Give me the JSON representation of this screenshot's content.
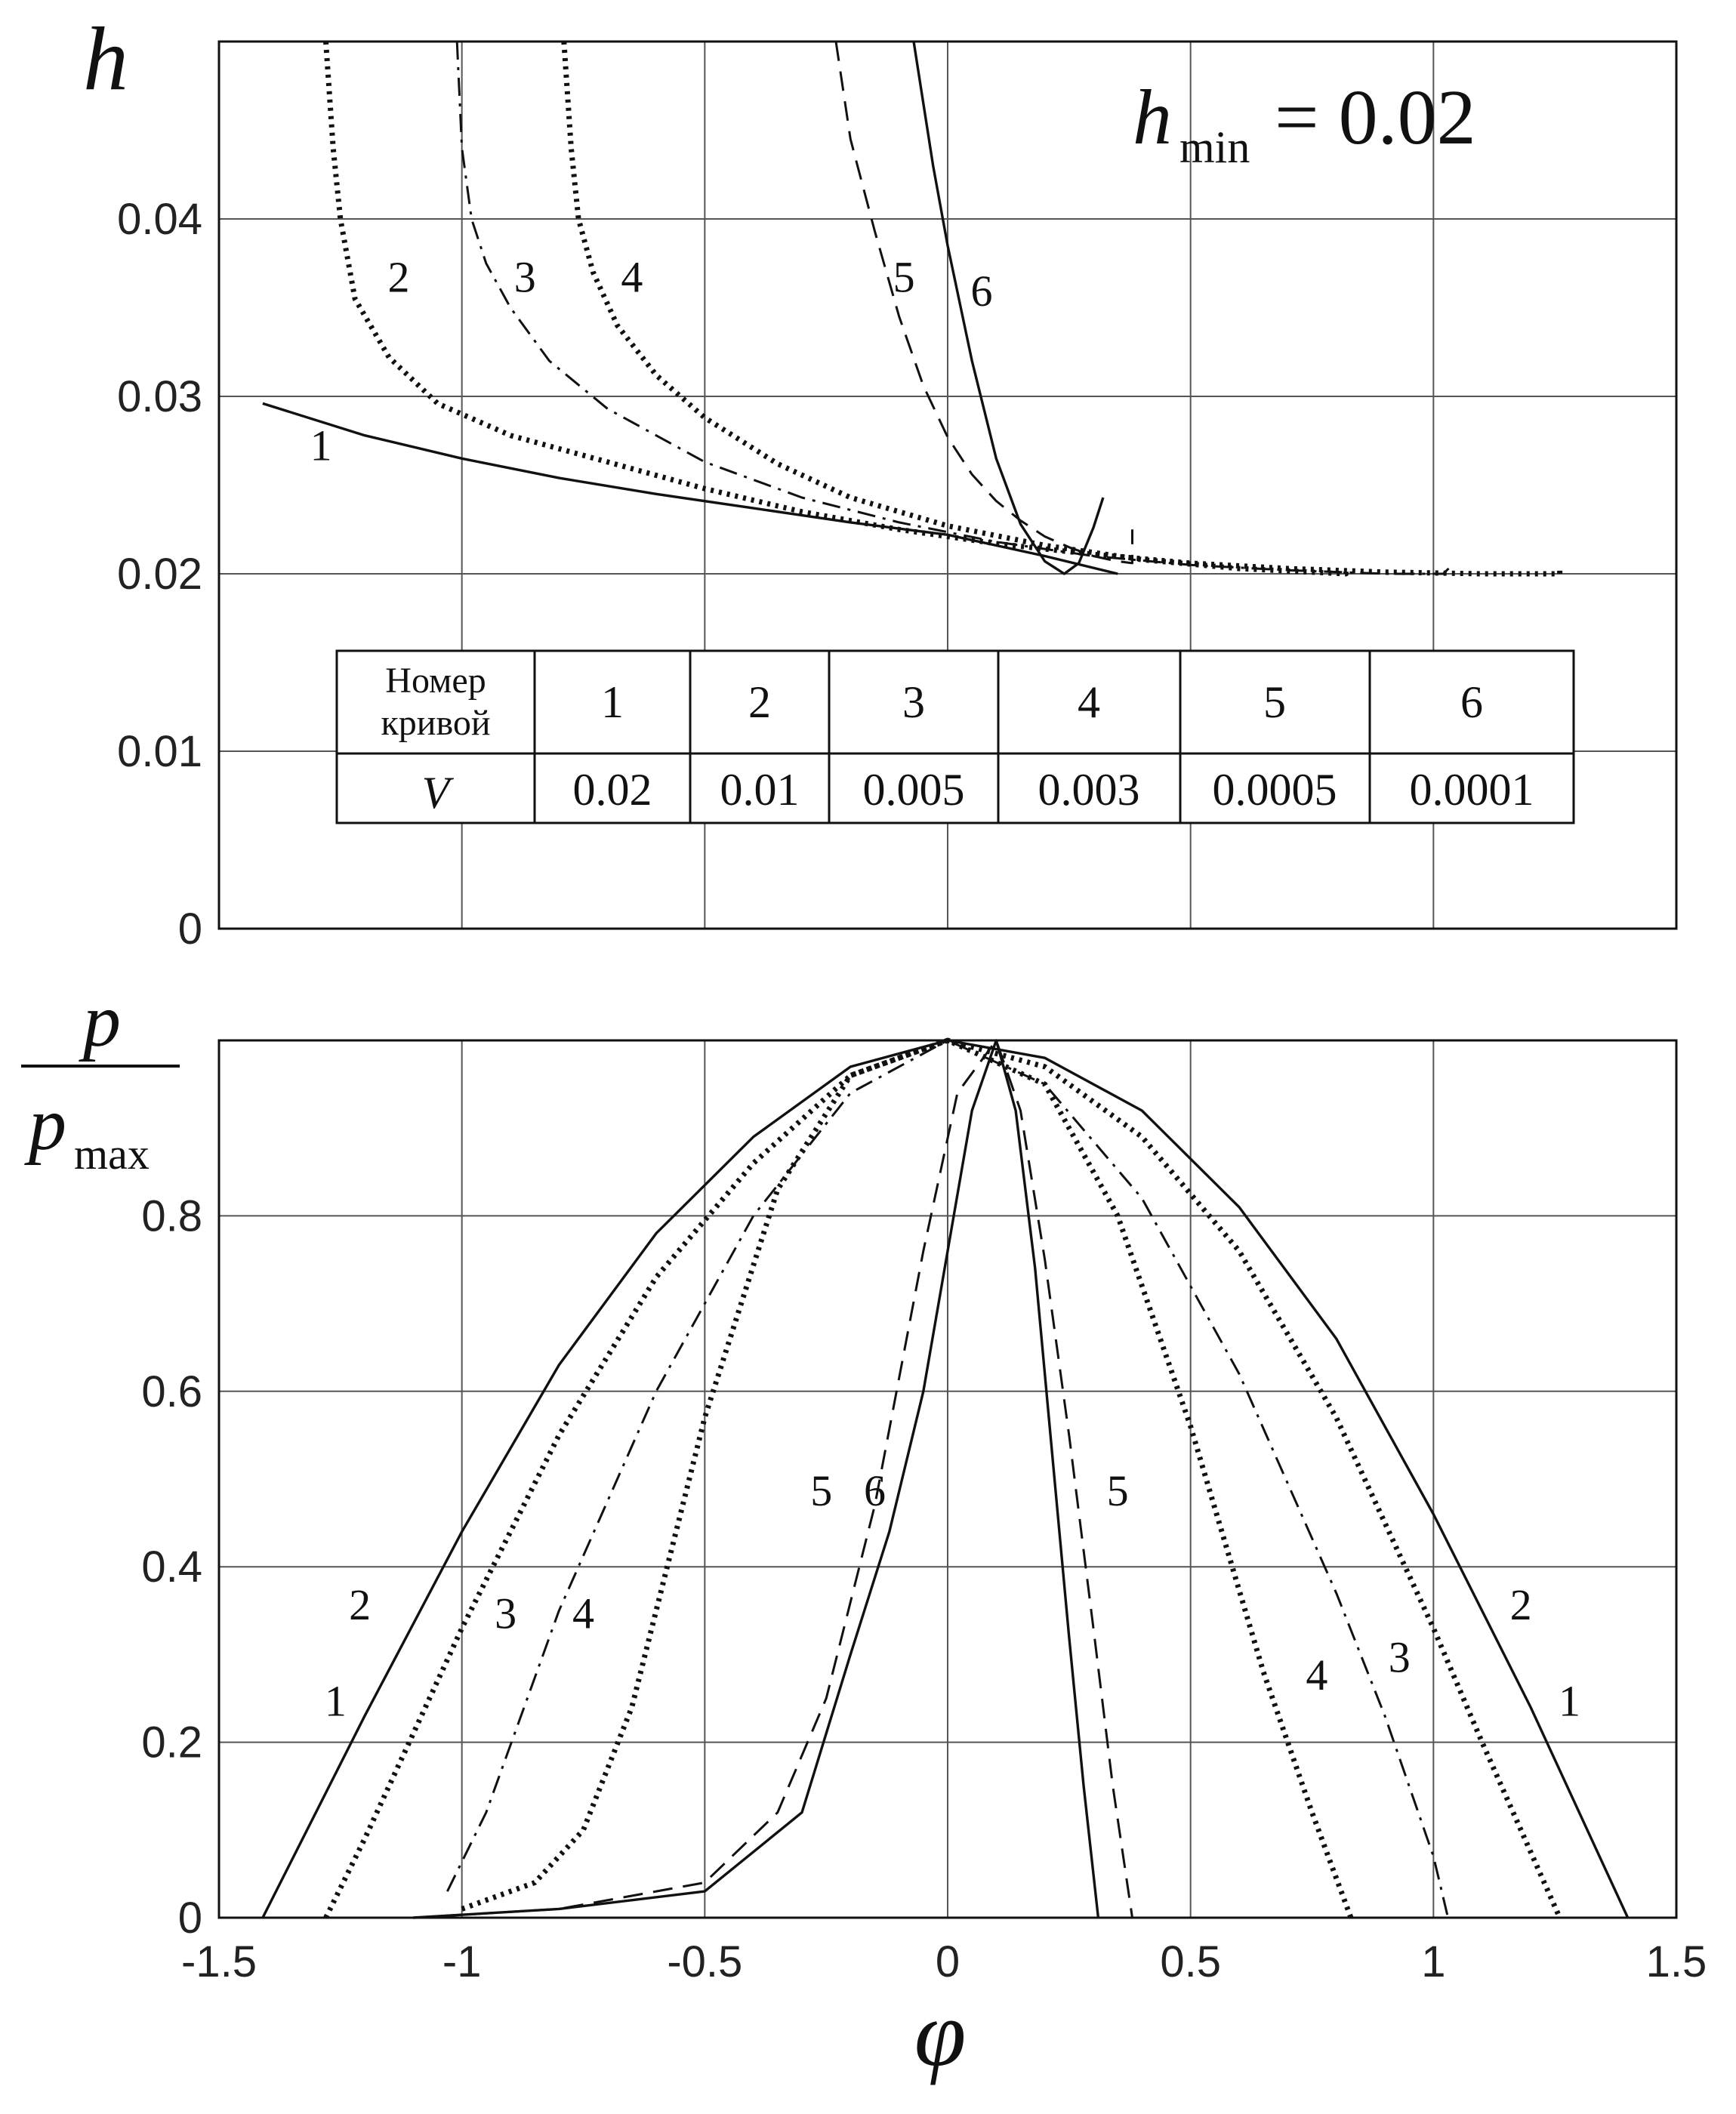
{
  "chart_data": [
    {
      "type": "line",
      "panel": "top",
      "ylabel": "h",
      "annotation": {
        "prefix": "h",
        "subscript": "min",
        "value": "= 0.02"
      },
      "xlim": [
        -1.5,
        1.5
      ],
      "ylim": [
        0,
        0.05
      ],
      "xticks": [
        -1.5,
        -1,
        -0.5,
        0,
        0.5,
        1,
        1.5
      ],
      "yticks": [
        "0",
        "0.01",
        "0.02",
        "0.03",
        "0.04"
      ],
      "ytick_values": [
        0,
        0.01,
        0.02,
        0.03,
        0.04
      ],
      "table": {
        "header_label": [
          "Номер",
          "кривой"
        ],
        "value_label": "V",
        "curve_numbers": [
          "1",
          "2",
          "3",
          "4",
          "5",
          "6"
        ],
        "v_values": [
          "0.02",
          "0.01",
          "0.005",
          "0.003",
          "0.0005",
          "0.0001"
        ]
      },
      "series": [
        {
          "name": "1",
          "style": "solid",
          "label": "1",
          "label_at": [
            -1.29,
            0.0264
          ],
          "x": [
            -1.41,
            -1.2,
            -1.0,
            -0.8,
            -0.6,
            -0.4,
            -0.2,
            0,
            0.2,
            0.35
          ],
          "y": [
            0.0296,
            0.0278,
            0.0265,
            0.0254,
            0.0245,
            0.0237,
            0.0229,
            0.0222,
            0.021,
            0.02
          ]
        },
        {
          "name": "2",
          "style": "dotted",
          "label": "2",
          "label_at": [
            -1.13,
            0.0359
          ],
          "x": [
            -1.28,
            -1.265,
            -1.25,
            -1.22,
            -1.15,
            -1.05,
            -0.9,
            -0.7,
            -0.5,
            -0.3,
            -0.1,
            0.1,
            0.3,
            0.5,
            0.7,
            0.9,
            1.1,
            1.26,
            1.26
          ],
          "y": [
            0.05,
            0.044,
            0.04,
            0.0355,
            0.0322,
            0.0296,
            0.0278,
            0.0263,
            0.0248,
            0.0235,
            0.0225,
            0.0217,
            0.0211,
            0.0206,
            0.0203,
            0.0201,
            0.02,
            0.02,
            0.0202
          ]
        },
        {
          "name": "3",
          "style": "dashdot",
          "label": "3",
          "label_at": [
            -0.87,
            0.0359
          ],
          "x": [
            -1.01,
            -1.0,
            -0.98,
            -0.95,
            -0.9,
            -0.82,
            -0.7,
            -0.5,
            -0.3,
            -0.1,
            0.1,
            0.3,
            0.5,
            0.7,
            0.9,
            1.02,
            1.035
          ],
          "y": [
            0.05,
            0.044,
            0.04,
            0.0375,
            0.035,
            0.032,
            0.0293,
            0.0263,
            0.0243,
            0.0229,
            0.0218,
            0.021,
            0.0205,
            0.0202,
            0.02,
            0.02,
            0.0204
          ]
        },
        {
          "name": "4",
          "style": "dotted",
          "label": "4",
          "label_at": [
            -0.65,
            0.0359
          ],
          "x": [
            -0.79,
            -0.775,
            -0.76,
            -0.73,
            -0.68,
            -0.6,
            -0.5,
            -0.35,
            -0.2,
            0,
            0.2,
            0.4,
            0.6,
            0.82,
            0.82
          ],
          "y": [
            0.05,
            0.044,
            0.04,
            0.037,
            0.034,
            0.0312,
            0.0288,
            0.0262,
            0.0243,
            0.0227,
            0.0216,
            0.0208,
            0.0203,
            0.02,
            0.0204
          ]
        },
        {
          "name": "5",
          "style": "dashed",
          "label": "5",
          "label_at": [
            -0.09,
            0.0359
          ],
          "x": [
            -0.23,
            -0.2,
            -0.15,
            -0.1,
            -0.05,
            0,
            0.05,
            0.1,
            0.15,
            0.2,
            0.25,
            0.3,
            0.35,
            0.38,
            0.38
          ],
          "y": [
            0.05,
            0.0445,
            0.0393,
            0.0345,
            0.0306,
            0.0277,
            0.0256,
            0.0241,
            0.023,
            0.0221,
            0.0215,
            0.021,
            0.0207,
            0.0206,
            0.0225
          ]
        },
        {
          "name": "6",
          "style": "solid",
          "label": "6",
          "label_at": [
            0.07,
            0.0351
          ],
          "x": [
            -0.07,
            -0.03,
            0,
            0.05,
            0.1,
            0.15,
            0.2,
            0.24,
            0.27,
            0.3,
            0.32
          ],
          "y": [
            0.05,
            0.043,
            0.0385,
            0.032,
            0.0265,
            0.0228,
            0.0207,
            0.02,
            0.0206,
            0.0226,
            0.0243
          ]
        }
      ]
    },
    {
      "type": "line",
      "panel": "bottom",
      "ylabel": {
        "numerator": "p",
        "denominator": "p",
        "subscript": "max"
      },
      "xlabel": "φ",
      "xlim": [
        -1.5,
        1.5
      ],
      "ylim": [
        0,
        1.0
      ],
      "xticks": [
        "-1.5",
        "-1",
        "-0.5",
        "0",
        "0.5",
        "1",
        "1.5"
      ],
      "xtick_values": [
        -1.5,
        -1,
        -0.5,
        0,
        0.5,
        1,
        1.5
      ],
      "yticks": [
        "0",
        "0.2",
        "0.4",
        "0.6",
        "0.8"
      ],
      "ytick_values": [
        0,
        0.2,
        0.4,
        0.6,
        0.8
      ],
      "series": [
        {
          "name": "1",
          "style": "solid",
          "x": [
            -1.41,
            -1.2,
            -1.0,
            -0.8,
            -0.6,
            -0.4,
            -0.2,
            0,
            0.2,
            0.4,
            0.6,
            0.8,
            1.0,
            1.2,
            1.4
          ],
          "y": [
            0.0,
            0.23,
            0.44,
            0.63,
            0.78,
            0.89,
            0.97,
            1.0,
            0.98,
            0.92,
            0.81,
            0.66,
            0.46,
            0.24,
            0.0
          ]
        },
        {
          "name": "2",
          "style": "dotted",
          "x": [
            -1.28,
            -1.2,
            -1.0,
            -0.8,
            -0.6,
            -0.4,
            -0.2,
            0,
            0.2,
            0.4,
            0.6,
            0.8,
            1.0,
            1.1,
            1.26
          ],
          "y": [
            0.0,
            0.09,
            0.33,
            0.55,
            0.73,
            0.86,
            0.96,
            1.0,
            0.97,
            0.89,
            0.76,
            0.57,
            0.33,
            0.2,
            0.0
          ]
        },
        {
          "name": "3",
          "style": "dashdot",
          "x": [
            -1.03,
            -0.95,
            -0.8,
            -0.6,
            -0.4,
            -0.2,
            0,
            0.2,
            0.4,
            0.6,
            0.8,
            0.9,
            1.0,
            1.03
          ],
          "y": [
            0.03,
            0.12,
            0.35,
            0.6,
            0.8,
            0.94,
            1.0,
            0.95,
            0.82,
            0.62,
            0.37,
            0.23,
            0.07,
            0.0
          ]
        },
        {
          "name": "4",
          "style": "dotted",
          "x": [
            -1.0,
            -0.85,
            -0.75,
            -0.65,
            -0.5,
            -0.35,
            -0.2,
            0,
            0.2,
            0.35,
            0.5,
            0.65,
            0.75,
            0.83
          ],
          "y": [
            0.01,
            0.04,
            0.1,
            0.24,
            0.57,
            0.83,
            0.96,
            1.0,
            0.95,
            0.8,
            0.56,
            0.28,
            0.12,
            0.0
          ]
        },
        {
          "name": "5",
          "style": "dashed",
          "x": [
            -1.1,
            -0.8,
            -0.5,
            -0.35,
            -0.25,
            -0.15,
            -0.05,
            0.02,
            0.1,
            0.15,
            0.2,
            0.25,
            0.3,
            0.34,
            0.38
          ],
          "y": [
            0.0,
            0.01,
            0.04,
            0.12,
            0.25,
            0.47,
            0.76,
            0.94,
            1.0,
            0.92,
            0.75,
            0.55,
            0.33,
            0.15,
            0.0
          ]
        },
        {
          "name": "6",
          "style": "solid",
          "x": [
            -1.1,
            -0.8,
            -0.5,
            -0.3,
            -0.2,
            -0.12,
            -0.05,
            0.0,
            0.05,
            0.1,
            0.14,
            0.18,
            0.22,
            0.25,
            0.28,
            0.31
          ],
          "y": [
            0.0,
            0.01,
            0.03,
            0.12,
            0.3,
            0.44,
            0.6,
            0.76,
            0.92,
            1.0,
            0.92,
            0.74,
            0.5,
            0.32,
            0.15,
            0.0
          ]
        }
      ],
      "curve_labels": [
        {
          "text": "1",
          "at": [
            -1.26,
            0.23
          ]
        },
        {
          "text": "2",
          "at": [
            -1.21,
            0.34
          ]
        },
        {
          "text": "3",
          "at": [
            -0.91,
            0.33
          ]
        },
        {
          "text": "4",
          "at": [
            -0.75,
            0.33
          ]
        },
        {
          "text": "5",
          "at": [
            -0.26,
            0.47
          ]
        },
        {
          "text": "6",
          "at": [
            -0.15,
            0.47
          ]
        },
        {
          "text": "5",
          "at": [
            0.35,
            0.47
          ]
        },
        {
          "text": "4",
          "at": [
            0.76,
            0.26
          ]
        },
        {
          "text": "3",
          "at": [
            0.93,
            0.28
          ]
        },
        {
          "text": "2",
          "at": [
            1.18,
            0.34
          ]
        },
        {
          "text": "1",
          "at": [
            1.28,
            0.23
          ]
        }
      ]
    }
  ]
}
